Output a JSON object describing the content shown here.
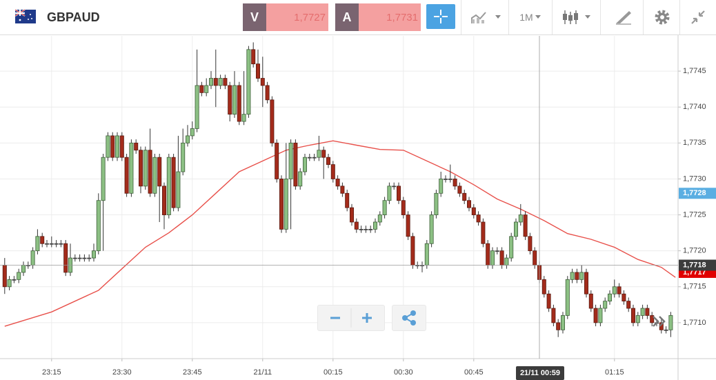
{
  "toolbar": {
    "symbol": "GBPAUD",
    "bid_label": "V",
    "bid": "1,7727",
    "ask_label": "A",
    "ask": "1,7731",
    "timeframe": "1M"
  },
  "chart_data": {
    "type": "candlestick",
    "up_color": "#8cc084",
    "down_color": "#a32b1b",
    "xlim": [
      "23:04",
      "01:29"
    ],
    "ylim": [
      1.7705,
      1.775
    ],
    "xticks": [
      "23:15",
      "23:30",
      "23:45",
      {
        "value": "00:00",
        "label": "21/11"
      },
      "00:15",
      "00:30",
      "00:45",
      "01:15"
    ],
    "yticks": [
      {
        "value": 1.771,
        "label": "1,7710"
      },
      {
        "value": 1.7715,
        "label": "1,7715"
      },
      {
        "value": 1.772,
        "label": "1,7720"
      },
      {
        "value": 1.7725,
        "label": "1,7725"
      },
      {
        "value": 1.773,
        "label": "1,7730"
      },
      {
        "value": 1.7735,
        "label": "1,7735"
      },
      {
        "value": 1.774,
        "label": "1,7740"
      },
      {
        "value": 1.7745,
        "label": "1,7745"
      }
    ],
    "grid": true,
    "x": [
      "23:05",
      "23:06",
      "23:07",
      "23:08",
      "23:09",
      "23:10",
      "23:11",
      "23:12",
      "23:13",
      "23:14",
      "23:15",
      "23:16",
      "23:17",
      "23:18",
      "23:19",
      "23:20",
      "23:21",
      "23:22",
      "23:23",
      "23:24",
      "23:25",
      "23:26",
      "23:27",
      "23:28",
      "23:29",
      "23:30",
      "23:31",
      "23:32",
      "23:33",
      "23:34",
      "23:35",
      "23:36",
      "23:37",
      "23:38",
      "23:39",
      "23:40",
      "23:41",
      "23:42",
      "23:43",
      "23:44",
      "23:45",
      "23:46",
      "23:47",
      "23:48",
      "23:49",
      "23:50",
      "23:51",
      "23:52",
      "23:53",
      "23:54",
      "23:55",
      "23:56",
      "23:57",
      "23:58",
      "23:59",
      "00:00",
      "00:01",
      "00:02",
      "00:03",
      "00:04",
      "00:05",
      "00:06",
      "00:07",
      "00:08",
      "00:09",
      "00:10",
      "00:11",
      "00:12",
      "00:13",
      "00:14",
      "00:15",
      "00:16",
      "00:17",
      "00:18",
      "00:19",
      "00:20",
      "00:21",
      "00:22",
      "00:23",
      "00:24",
      "00:25",
      "00:26",
      "00:27",
      "00:28",
      "00:29",
      "00:30",
      "00:31",
      "00:32",
      "00:33",
      "00:34",
      "00:35",
      "00:36",
      "00:37",
      "00:38",
      "00:39",
      "00:40",
      "00:41",
      "00:42",
      "00:43",
      "00:44",
      "00:45",
      "00:46",
      "00:47",
      "00:48",
      "00:49",
      "00:50",
      "00:51",
      "00:52",
      "00:53",
      "00:54",
      "00:55",
      "00:56",
      "00:57",
      "00:58",
      "00:59",
      "01:00",
      "01:01",
      "01:02",
      "01:03",
      "01:04",
      "01:05",
      "01:06",
      "01:07",
      "01:08",
      "01:09",
      "01:10",
      "01:11",
      "01:12",
      "01:13",
      "01:14",
      "01:15",
      "01:16",
      "01:17",
      "01:18",
      "01:19",
      "01:20",
      "01:21",
      "01:22",
      "01:23",
      "01:24",
      "01:25",
      "01:26",
      "01:27"
    ],
    "open": [
      1.7718,
      1.7715,
      1.7716,
      1.7716,
      1.7717,
      1.7718,
      1.7718,
      1.772,
      1.7722,
      1.7721,
      1.7721,
      1.7721,
      1.7721,
      1.7721,
      1.7717,
      1.7719,
      1.7719,
      1.7719,
      1.7719,
      1.7719,
      1.772,
      1.7727,
      1.7733,
      1.7736,
      1.7733,
      1.7736,
      1.7733,
      1.7728,
      1.7735,
      1.7734,
      1.7729,
      1.7734,
      1.7728,
      1.7733,
      1.7729,
      1.7725,
      1.7733,
      1.7726,
      1.7731,
      1.7735,
      1.7736,
      1.7737,
      1.7743,
      1.7742,
      1.7743,
      1.7744,
      1.7743,
      1.7744,
      1.7743,
      1.7739,
      1.7743,
      1.7738,
      1.7739,
      1.7748,
      1.7746,
      1.7744,
      1.7743,
      1.7741,
      1.7735,
      1.773,
      1.7723,
      1.773,
      1.7735,
      1.7729,
      1.7731,
      1.7733,
      1.7733,
      1.7733,
      1.7734,
      1.7733,
      1.7732,
      1.773,
      1.7729,
      1.7728,
      1.7726,
      1.7724,
      1.7723,
      1.7723,
      1.7723,
      1.7723,
      1.7724,
      1.7725,
      1.7727,
      1.7729,
      1.7729,
      1.7727,
      1.7725,
      1.7722,
      1.7718,
      1.7718,
      1.7718,
      1.7721,
      1.7725,
      1.7728,
      1.773,
      1.773,
      1.773,
      1.7729,
      1.7728,
      1.7727,
      1.7726,
      1.7725,
      1.7724,
      1.7721,
      1.7718,
      1.772,
      1.772,
      1.7718,
      1.7719,
      1.7722,
      1.7724,
      1.7725,
      1.7722,
      1.772,
      1.7718,
      1.7716,
      1.7714,
      1.7712,
      1.771,
      1.7709,
      1.7711,
      1.7716,
      1.7717,
      1.7716,
      1.7717,
      1.7714,
      1.7712,
      1.771,
      1.7712,
      1.7713,
      1.7714,
      1.7715,
      1.7714,
      1.7713,
      1.7712,
      1.771,
      1.7711,
      1.7712,
      1.7711,
      1.771,
      1.771,
      1.7709,
      1.7709
    ],
    "high": [
      1.7719,
      1.77165,
      1.77165,
      1.77175,
      1.77185,
      1.77185,
      1.77205,
      1.7723,
      1.77225,
      1.77215,
      1.7722,
      1.77215,
      1.77215,
      1.77215,
      1.7721,
      1.77195,
      1.77195,
      1.77195,
      1.77195,
      1.7721,
      1.7728,
      1.77335,
      1.77365,
      1.77365,
      1.77365,
      1.77365,
      1.77335,
      1.77355,
      1.77355,
      1.77345,
      1.77345,
      1.7737,
      1.77335,
      1.77335,
      1.77295,
      1.77335,
      1.77335,
      1.7736,
      1.7737,
      1.77375,
      1.7738,
      1.7748,
      1.77435,
      1.7744,
      1.7745,
      1.7748,
      1.77445,
      1.77445,
      1.77435,
      1.7745,
      1.77435,
      1.7745,
      1.77485,
      1.7749,
      1.7748,
      1.7747,
      1.77435,
      1.77415,
      1.77355,
      1.77305,
      1.7735,
      1.77355,
      1.77355,
      1.77315,
      1.77335,
      1.77335,
      1.77335,
      1.7736,
      1.77345,
      1.77335,
      1.77325,
      1.77305,
      1.77295,
      1.77285,
      1.77265,
      1.77245,
      1.77235,
      1.77235,
      1.77235,
      1.77245,
      1.77255,
      1.77275,
      1.77295,
      1.77295,
      1.77295,
      1.77275,
      1.77255,
      1.77225,
      1.77185,
      1.77185,
      1.77215,
      1.77255,
      1.77285,
      1.7731,
      1.77305,
      1.7732,
      1.77305,
      1.77295,
      1.77285,
      1.77275,
      1.77265,
      1.77255,
      1.77245,
      1.77215,
      1.77205,
      1.77205,
      1.77205,
      1.77195,
      1.77225,
      1.77245,
      1.77265,
      1.77255,
      1.77225,
      1.77205,
      1.77185,
      1.77165,
      1.77145,
      1.77125,
      1.77105,
      1.77115,
      1.77165,
      1.77175,
      1.77175,
      1.7718,
      1.77175,
      1.77145,
      1.77125,
      1.77125,
      1.77135,
      1.77145,
      1.7716,
      1.77155,
      1.77145,
      1.77135,
      1.77125,
      1.77115,
      1.77125,
      1.77125,
      1.77115,
      1.77105,
      1.77105,
      1.77095,
      1.77115
    ],
    "low": [
      1.7714,
      1.77145,
      1.77155,
      1.77155,
      1.77165,
      1.77175,
      1.77175,
      1.77195,
      1.77205,
      1.77205,
      1.77205,
      1.77205,
      1.77205,
      1.77165,
      1.77165,
      1.77185,
      1.77185,
      1.77185,
      1.77185,
      1.77185,
      1.77195,
      1.772,
      1.77325,
      1.77325,
      1.77325,
      1.77325,
      1.77275,
      1.77275,
      1.77335,
      1.7728,
      1.77285,
      1.77275,
      1.77275,
      1.7724,
      1.7723,
      1.77245,
      1.77255,
      1.77255,
      1.77305,
      1.77345,
      1.77355,
      1.77365,
      1.77415,
      1.77415,
      1.77425,
      1.774,
      1.77425,
      1.77425,
      1.7738,
      1.77385,
      1.77375,
      1.77375,
      1.77385,
      1.77455,
      1.77435,
      1.774,
      1.77405,
      1.77345,
      1.77295,
      1.77225,
      1.77225,
      1.7723,
      1.77285,
      1.77285,
      1.77305,
      1.77325,
      1.77325,
      1.77325,
      1.773,
      1.77315,
      1.77295,
      1.77285,
      1.77275,
      1.77255,
      1.77235,
      1.77225,
      1.77225,
      1.77225,
      1.77225,
      1.77225,
      1.77235,
      1.77245,
      1.77265,
      1.77285,
      1.77265,
      1.77245,
      1.77215,
      1.77175,
      1.77175,
      1.7717,
      1.77175,
      1.77205,
      1.77245,
      1.77275,
      1.77295,
      1.77295,
      1.77285,
      1.77275,
      1.77265,
      1.77255,
      1.77245,
      1.77235,
      1.77205,
      1.77175,
      1.77175,
      1.77195,
      1.77175,
      1.77175,
      1.77185,
      1.77215,
      1.77235,
      1.77215,
      1.77195,
      1.77175,
      1.77155,
      1.77135,
      1.77115,
      1.77095,
      1.7708,
      1.77085,
      1.77105,
      1.77155,
      1.77155,
      1.77155,
      1.77135,
      1.77115,
      1.77095,
      1.77095,
      1.77115,
      1.77125,
      1.77135,
      1.77135,
      1.77125,
      1.77115,
      1.77095,
      1.77095,
      1.77105,
      1.77105,
      1.77095,
      1.77095,
      1.77085,
      1.77085,
      1.7708
    ],
    "close": [
      1.7715,
      1.7716,
      1.7716,
      1.7717,
      1.7718,
      1.7718,
      1.772,
      1.7722,
      1.7721,
      1.7721,
      1.7721,
      1.7721,
      1.7721,
      1.7717,
      1.7719,
      1.7719,
      1.7719,
      1.7719,
      1.7719,
      1.772,
      1.7727,
      1.7733,
      1.7736,
      1.7733,
      1.7736,
      1.7733,
      1.7728,
      1.7735,
      1.7734,
      1.7729,
      1.7734,
      1.7728,
      1.7733,
      1.7729,
      1.7725,
      1.7733,
      1.7726,
      1.7731,
      1.7735,
      1.7736,
      1.7737,
      1.7743,
      1.7742,
      1.7743,
      1.7744,
      1.7743,
      1.7744,
      1.7743,
      1.7739,
      1.7743,
      1.7738,
      1.7739,
      1.7748,
      1.7746,
      1.7744,
      1.7743,
      1.7741,
      1.7735,
      1.773,
      1.7723,
      1.773,
      1.7735,
      1.7729,
      1.7731,
      1.7733,
      1.7733,
      1.7733,
      1.7734,
      1.7733,
      1.7732,
      1.773,
      1.7729,
      1.7728,
      1.7726,
      1.7724,
      1.7723,
      1.7723,
      1.7723,
      1.7723,
      1.7724,
      1.7725,
      1.7727,
      1.7729,
      1.7729,
      1.7727,
      1.7725,
      1.7722,
      1.7718,
      1.7718,
      1.7718,
      1.7721,
      1.7725,
      1.7728,
      1.773,
      1.773,
      1.773,
      1.7729,
      1.7728,
      1.7727,
      1.7726,
      1.7725,
      1.7724,
      1.7721,
      1.7718,
      1.772,
      1.772,
      1.7718,
      1.7719,
      1.7722,
      1.7724,
      1.7725,
      1.7722,
      1.772,
      1.7718,
      1.7716,
      1.7714,
      1.7712,
      1.771,
      1.7709,
      1.7711,
      1.7716,
      1.7717,
      1.7716,
      1.7717,
      1.7714,
      1.7712,
      1.771,
      1.7712,
      1.7713,
      1.7714,
      1.7715,
      1.7714,
      1.7713,
      1.7712,
      1.771,
      1.7711,
      1.7712,
      1.7711,
      1.771,
      1.771,
      1.7709,
      1.7709,
      1.7711
    ],
    "overlay": {
      "color": "#e8504a",
      "x": [
        "23:05",
        "23:15",
        "23:25",
        "23:30",
        "23:35",
        "23:40",
        "23:45",
        "23:50",
        "23:55",
        "00:00",
        "00:05",
        "00:10",
        "00:15",
        "00:20",
        "00:25",
        "00:30",
        "00:35",
        "00:40",
        "00:45",
        "00:50",
        "00:55",
        "01:00",
        "01:05",
        "01:10",
        "01:15",
        "01:20",
        "01:25",
        "01:28"
      ],
      "values": [
        1.77095,
        1.77115,
        1.77145,
        1.77175,
        1.77205,
        1.77225,
        1.7725,
        1.7728,
        1.7731,
        1.77325,
        1.7734,
        1.77347,
        1.77353,
        1.77347,
        1.77341,
        1.7734,
        1.77325,
        1.7731,
        1.77292,
        1.77272,
        1.77258,
        1.77242,
        1.77224,
        1.77216,
        1.77205,
        1.77188,
        1.77177,
        1.77163
      ]
    },
    "price_tags": [
      {
        "value": 1.7728,
        "label": "1,7728",
        "color": "#5aaee2"
      },
      {
        "value": 1.7717,
        "label": "1,7717",
        "color": "#e00000"
      }
    ],
    "crosshair": {
      "x": "00:59",
      "x_label": "21/11 00:59",
      "price": {
        "value": 1.7718,
        "label": "1,7718"
      },
      "color": "#3c3c3c"
    }
  }
}
